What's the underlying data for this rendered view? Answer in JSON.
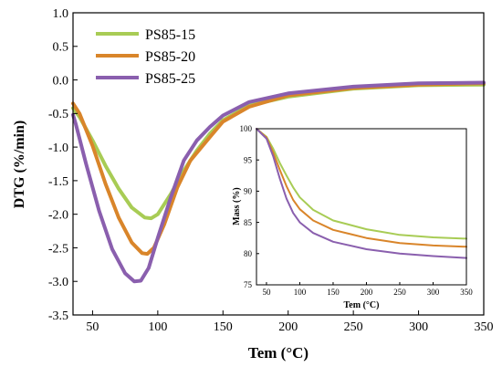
{
  "chart_data": [
    {
      "type": "line",
      "xlabel": "Tem  (°C)",
      "ylabel": "DTG (%/min)",
      "xlim": [
        35,
        350
      ],
      "ylim": [
        -3.5,
        1.0
      ],
      "xticks": [
        50,
        100,
        150,
        200,
        250,
        300,
        350
      ],
      "yticks": [
        -3.5,
        -3.0,
        -2.5,
        -2.0,
        -1.5,
        -1.0,
        -0.5,
        0.0,
        0.5,
        1.0
      ],
      "legend": "top-left",
      "series": [
        {
          "name": "PS85-15",
          "color": "#a8cc55",
          "points": [
            [
              35,
              -0.42
            ],
            [
              40,
              -0.55
            ],
            [
              50,
              -0.9
            ],
            [
              60,
              -1.28
            ],
            [
              70,
              -1.62
            ],
            [
              80,
              -1.9
            ],
            [
              90,
              -2.05
            ],
            [
              95,
              -2.06
            ],
            [
              100,
              -2.0
            ],
            [
              110,
              -1.7
            ],
            [
              120,
              -1.35
            ],
            [
              130,
              -1.05
            ],
            [
              140,
              -0.8
            ],
            [
              150,
              -0.6
            ],
            [
              170,
              -0.38
            ],
            [
              200,
              -0.25
            ],
            [
              250,
              -0.13
            ],
            [
              300,
              -0.08
            ],
            [
              350,
              -0.07
            ]
          ]
        },
        {
          "name": "PS85-20",
          "color": "#d9852a",
          "points": [
            [
              35,
              -0.35
            ],
            [
              40,
              -0.5
            ],
            [
              50,
              -0.98
            ],
            [
              60,
              -1.55
            ],
            [
              70,
              -2.05
            ],
            [
              80,
              -2.42
            ],
            [
              88,
              -2.58
            ],
            [
              92,
              -2.59
            ],
            [
              97,
              -2.5
            ],
            [
              105,
              -2.15
            ],
            [
              115,
              -1.6
            ],
            [
              125,
              -1.2
            ],
            [
              140,
              -0.85
            ],
            [
              150,
              -0.62
            ],
            [
              170,
              -0.4
            ],
            [
              200,
              -0.23
            ],
            [
              250,
              -0.12
            ],
            [
              300,
              -0.07
            ],
            [
              350,
              -0.05
            ]
          ]
        },
        {
          "name": "PS85-25",
          "color": "#8a5fae",
          "points": [
            [
              35,
              -0.52
            ],
            [
              37,
              -0.65
            ],
            [
              45,
              -1.25
            ],
            [
              55,
              -1.95
            ],
            [
              65,
              -2.52
            ],
            [
              75,
              -2.88
            ],
            [
              82,
              -3.0
            ],
            [
              87,
              -2.99
            ],
            [
              93,
              -2.8
            ],
            [
              100,
              -2.35
            ],
            [
              110,
              -1.75
            ],
            [
              120,
              -1.2
            ],
            [
              130,
              -0.9
            ],
            [
              140,
              -0.7
            ],
            [
              150,
              -0.53
            ],
            [
              170,
              -0.33
            ],
            [
              200,
              -0.2
            ],
            [
              250,
              -0.1
            ],
            [
              300,
              -0.05
            ],
            [
              350,
              -0.04
            ]
          ]
        }
      ]
    },
    {
      "type": "line",
      "xlabel": "Tem (°C)",
      "ylabel": "Mass (%)",
      "xlim": [
        35,
        350
      ],
      "ylim": [
        75,
        100
      ],
      "xticks": [
        50,
        100,
        150,
        200,
        250,
        300,
        350
      ],
      "yticks": [
        75,
        80,
        85,
        90,
        95,
        100
      ],
      "series": [
        {
          "name": "PS85-15",
          "color": "#a8cc55",
          "points": [
            [
              35,
              100
            ],
            [
              50,
              98.7
            ],
            [
              60,
              96.8
            ],
            [
              70,
              94.5
            ],
            [
              80,
              92.5
            ],
            [
              90,
              90.6
            ],
            [
              100,
              89.0
            ],
            [
              120,
              87.0
            ],
            [
              150,
              85.3
            ],
            [
              200,
              83.9
            ],
            [
              250,
              83.0
            ],
            [
              300,
              82.6
            ],
            [
              350,
              82.4
            ]
          ]
        },
        {
          "name": "PS85-20",
          "color": "#d9852a",
          "points": [
            [
              35,
              100
            ],
            [
              50,
              98.6
            ],
            [
              60,
              96.2
            ],
            [
              70,
              93.4
            ],
            [
              80,
              90.8
            ],
            [
              90,
              88.6
            ],
            [
              100,
              87.1
            ],
            [
              120,
              85.3
            ],
            [
              150,
              83.8
            ],
            [
              200,
              82.5
            ],
            [
              250,
              81.7
            ],
            [
              300,
              81.3
            ],
            [
              350,
              81.1
            ]
          ]
        },
        {
          "name": "PS85-25",
          "color": "#8a5fae",
          "points": [
            [
              35,
              100
            ],
            [
              50,
              98.4
            ],
            [
              60,
              95.6
            ],
            [
              70,
              92.0
            ],
            [
              80,
              88.8
            ],
            [
              90,
              86.5
            ],
            [
              100,
              85.0
            ],
            [
              120,
              83.3
            ],
            [
              150,
              81.9
            ],
            [
              200,
              80.7
            ],
            [
              250,
              80.0
            ],
            [
              300,
              79.6
            ],
            [
              350,
              79.3
            ]
          ]
        }
      ]
    }
  ]
}
